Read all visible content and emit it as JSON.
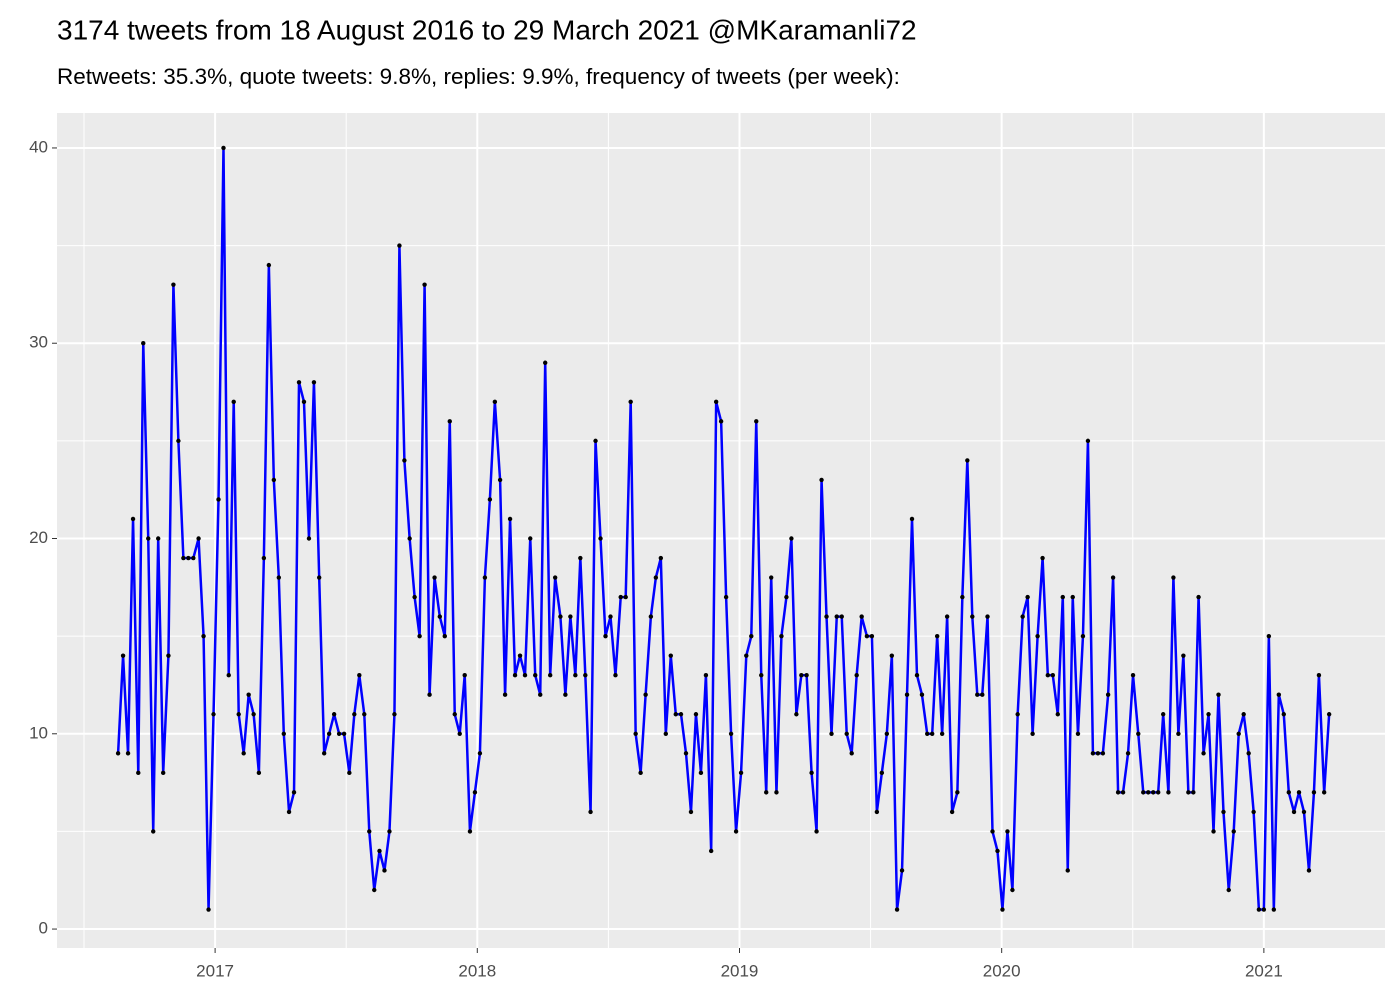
{
  "chart_data": {
    "type": "line",
    "title": "3174 tweets from 18 August 2016 to 29 March 2021 @MKaramanli72",
    "subtitle": "Retweets: 35.3%, quote tweets: 9.8%, replies: 9.9%, frequency of tweets (per week):",
    "color": "#0000ff",
    "point_color": "#000000",
    "grid": true,
    "xlim": [
      2016.397,
      2021.462
    ],
    "xticks": [
      2017,
      2018,
      2019,
      2020,
      2021
    ],
    "ylim": [
      -0.97,
      41.79
    ],
    "yticks": [
      0,
      10,
      20,
      30,
      40
    ],
    "x": [
      2016.63,
      2016.649,
      2016.668,
      2016.687,
      2016.707,
      2016.726,
      2016.745,
      2016.764,
      2016.783,
      2016.802,
      2016.822,
      2016.841,
      2016.86,
      2016.879,
      2016.898,
      2016.917,
      2016.937,
      2016.956,
      2016.975,
      2016.994,
      2017.013,
      2017.032,
      2017.052,
      2017.071,
      2017.09,
      2017.109,
      2017.128,
      2017.147,
      2017.167,
      2017.186,
      2017.205,
      2017.224,
      2017.243,
      2017.262,
      2017.282,
      2017.301,
      2017.32,
      2017.339,
      2017.358,
      2017.377,
      2017.397,
      2017.416,
      2017.435,
      2017.454,
      2017.473,
      2017.492,
      2017.512,
      2017.531,
      2017.55,
      2017.569,
      2017.588,
      2017.607,
      2017.627,
      2017.646,
      2017.665,
      2017.684,
      2017.703,
      2017.722,
      2017.742,
      2017.761,
      2017.78,
      2017.799,
      2017.818,
      2017.837,
      2017.857,
      2017.876,
      2017.895,
      2017.914,
      2017.933,
      2017.952,
      2017.972,
      2017.991,
      2018.01,
      2018.029,
      2018.048,
      2018.067,
      2018.087,
      2018.106,
      2018.125,
      2018.144,
      2018.163,
      2018.182,
      2018.202,
      2018.221,
      2018.24,
      2018.259,
      2018.278,
      2018.297,
      2018.317,
      2018.336,
      2018.355,
      2018.374,
      2018.393,
      2018.412,
      2018.432,
      2018.451,
      2018.47,
      2018.489,
      2018.508,
      2018.527,
      2018.547,
      2018.566,
      2018.585,
      2018.604,
      2018.623,
      2018.642,
      2018.662,
      2018.681,
      2018.7,
      2018.719,
      2018.738,
      2018.757,
      2018.777,
      2018.796,
      2018.815,
      2018.834,
      2018.853,
      2018.872,
      2018.892,
      2018.911,
      2018.93,
      2018.949,
      2018.968,
      2018.987,
      2019.006,
      2019.026,
      2019.045,
      2019.064,
      2019.083,
      2019.102,
      2019.121,
      2019.141,
      2019.16,
      2019.179,
      2019.198,
      2019.217,
      2019.236,
      2019.256,
      2019.275,
      2019.294,
      2019.313,
      2019.332,
      2019.351,
      2019.371,
      2019.39,
      2019.409,
      2019.428,
      2019.447,
      2019.466,
      2019.486,
      2019.505,
      2019.524,
      2019.543,
      2019.562,
      2019.581,
      2019.601,
      2019.62,
      2019.639,
      2019.658,
      2019.677,
      2019.696,
      2019.716,
      2019.735,
      2019.754,
      2019.773,
      2019.792,
      2019.811,
      2019.831,
      2019.85,
      2019.869,
      2019.888,
      2019.907,
      2019.926,
      2019.946,
      2019.965,
      2019.984,
      2020.003,
      2020.022,
      2020.041,
      2020.061,
      2020.08,
      2020.099,
      2020.118,
      2020.137,
      2020.156,
      2020.176,
      2020.195,
      2020.214,
      2020.233,
      2020.252,
      2020.271,
      2020.291,
      2020.31,
      2020.329,
      2020.348,
      2020.367,
      2020.386,
      2020.406,
      2020.425,
      2020.444,
      2020.463,
      2020.482,
      2020.501,
      2020.521,
      2020.54,
      2020.559,
      2020.578,
      2020.597,
      2020.616,
      2020.636,
      2020.655,
      2020.674,
      2020.693,
      2020.712,
      2020.731,
      2020.751,
      2020.77,
      2020.789,
      2020.808,
      2020.827,
      2020.846,
      2020.866,
      2020.885,
      2020.904,
      2020.923,
      2020.942,
      2020.961,
      2020.981,
      2021.0,
      2021.019,
      2021.038,
      2021.057,
      2021.076,
      2021.095,
      2021.115,
      2021.134,
      2021.153,
      2021.172,
      2021.191,
      2021.21,
      2021.23,
      2021.249
    ],
    "values": [
      9,
      14,
      9,
      21,
      8,
      30,
      20,
      5,
      20,
      8,
      14,
      33,
      25,
      19,
      19,
      19,
      20,
      15,
      1,
      11,
      22,
      40,
      13,
      27,
      11,
      9,
      12,
      11,
      8,
      19,
      34,
      23,
      18,
      10,
      6,
      7,
      28,
      27,
      20,
      28,
      18,
      9,
      10,
      11,
      10,
      10,
      8,
      11,
      13,
      11,
      5,
      2,
      4,
      3,
      5,
      11,
      35,
      24,
      20,
      17,
      15,
      33,
      12,
      18,
      16,
      15,
      26,
      11,
      10,
      13,
      5,
      7,
      9,
      18,
      22,
      27,
      23,
      12,
      21,
      13,
      14,
      13,
      20,
      13,
      12,
      29,
      13,
      18,
      16,
      12,
      16,
      13,
      19,
      13,
      6,
      25,
      20,
      15,
      16,
      13,
      17,
      17,
      27,
      10,
      8,
      12,
      16,
      18,
      19,
      10,
      14,
      11,
      11,
      9,
      6,
      11,
      8,
      13,
      4,
      27,
      26,
      17,
      10,
      5,
      8,
      14,
      15,
      26,
      13,
      7,
      18,
      7,
      15,
      17,
      20,
      11,
      13,
      13,
      8,
      5,
      23,
      16,
      10,
      16,
      16,
      10,
      9,
      13,
      16,
      15,
      15,
      6,
      8,
      10,
      14,
      1,
      3,
      12,
      21,
      13,
      12,
      10,
      10,
      15,
      10,
      16,
      6,
      7,
      17,
      24,
      16,
      12,
      12,
      16,
      5,
      4,
      1,
      5,
      2,
      11,
      16,
      17,
      10,
      15,
      19,
      13,
      13,
      11,
      17,
      3,
      17,
      10,
      15,
      25,
      9,
      9,
      9,
      12,
      18,
      7,
      7,
      9,
      13,
      10,
      7,
      7,
      7,
      7,
      11,
      7,
      18,
      10,
      14,
      7,
      7,
      17,
      9,
      11,
      5,
      12,
      6,
      2,
      5,
      10,
      11,
      9,
      6,
      1,
      1,
      15,
      1,
      12,
      11,
      7,
      6,
      7,
      6,
      3,
      7,
      13,
      7,
      11
    ]
  }
}
